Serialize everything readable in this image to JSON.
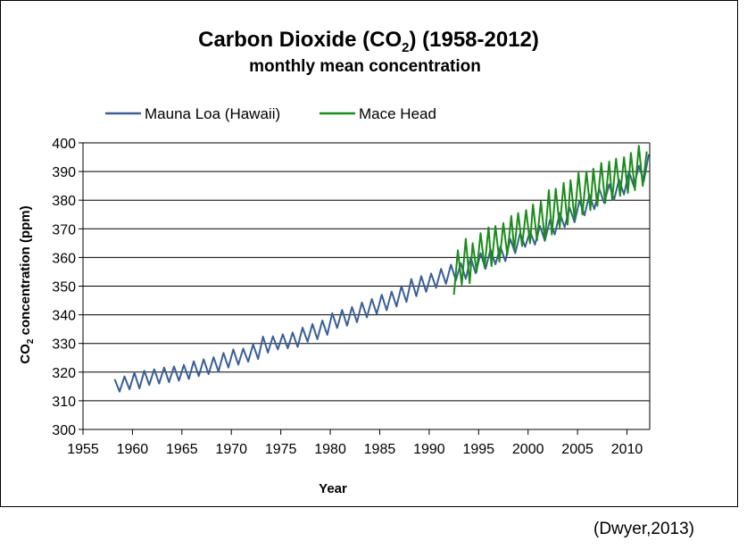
{
  "chart_data": {
    "type": "line",
    "title": {
      "prefix": "Carbon Dioxide (CO",
      "subscript": "2",
      "suffix": ") (1958-2012)"
    },
    "subtitle": "monthly mean concentration",
    "xlabel": "Year",
    "ylabel": {
      "prefix": "CO",
      "subscript": "2",
      "suffix": " concentration (ppm)"
    },
    "xlim": [
      1955,
      2012.3
    ],
    "ylim": [
      300,
      400
    ],
    "x_ticks": [
      1955,
      1960,
      1965,
      1970,
      1975,
      1980,
      1985,
      1990,
      1995,
      2000,
      2005,
      2010
    ],
    "y_ticks": [
      300,
      310,
      320,
      330,
      340,
      350,
      360,
      370,
      380,
      390,
      400
    ],
    "grid": "horizontal",
    "legend_position": "top",
    "series": [
      {
        "name": "Mauna Loa (Hawaii)",
        "color": "#3a5f96",
        "x": [
          1958.2,
          1958.7,
          1959.2,
          1959.7,
          1960.2,
          1960.7,
          1961.2,
          1961.7,
          1962.2,
          1962.7,
          1963.2,
          1963.7,
          1964.2,
          1964.7,
          1965.2,
          1965.7,
          1966.2,
          1966.7,
          1967.2,
          1967.7,
          1968.2,
          1968.7,
          1969.2,
          1969.7,
          1970.2,
          1970.7,
          1971.2,
          1971.7,
          1972.2,
          1972.7,
          1973.2,
          1973.7,
          1974.2,
          1974.7,
          1975.2,
          1975.7,
          1976.2,
          1976.7,
          1977.2,
          1977.7,
          1978.2,
          1978.7,
          1979.2,
          1979.7,
          1980.2,
          1980.7,
          1981.2,
          1981.7,
          1982.2,
          1982.7,
          1983.2,
          1983.7,
          1984.2,
          1984.7,
          1985.2,
          1985.7,
          1986.2,
          1986.7,
          1987.2,
          1987.7,
          1988.2,
          1988.7,
          1989.2,
          1989.7,
          1990.2,
          1990.7,
          1991.2,
          1991.7,
          1992.2,
          1992.7,
          1993.2,
          1993.7,
          1994.2,
          1994.7,
          1995.2,
          1995.7,
          1996.2,
          1996.7,
          1997.2,
          1997.7,
          1998.2,
          1998.7,
          1999.2,
          1999.7,
          2000.2,
          2000.7,
          2001.2,
          2001.7,
          2002.2,
          2002.7,
          2003.2,
          2003.7,
          2004.2,
          2004.7,
          2005.2,
          2005.7,
          2006.2,
          2006.7,
          2007.2,
          2007.7,
          2008.2,
          2008.7,
          2009.2,
          2009.7,
          2010.2,
          2010.7,
          2011.2,
          2011.7,
          2012.2
        ],
        "values": [
          317.5,
          313.2,
          318.5,
          314.0,
          319.8,
          314.3,
          320.5,
          315.5,
          321.0,
          316.0,
          321.6,
          316.5,
          322.0,
          317.0,
          322.5,
          317.6,
          323.8,
          318.6,
          324.5,
          319.3,
          325.2,
          320.2,
          326.7,
          321.6,
          327.9,
          322.6,
          328.2,
          323.6,
          329.7,
          324.6,
          332.4,
          326.8,
          332.5,
          327.9,
          333.2,
          328.3,
          333.8,
          328.8,
          335.5,
          330.6,
          336.8,
          331.5,
          338.0,
          333.0,
          340.6,
          335.4,
          341.7,
          336.2,
          342.7,
          337.4,
          344.3,
          339.1,
          345.5,
          340.3,
          347.0,
          341.6,
          348.1,
          342.9,
          350.0,
          344.5,
          352.5,
          346.5,
          353.5,
          348.0,
          354.4,
          349.4,
          356.0,
          350.8,
          357.5,
          352.0,
          358.0,
          352.6,
          360.0,
          354.5,
          361.5,
          356.0,
          362.8,
          357.6,
          363.8,
          358.7,
          366.5,
          361.5,
          368.5,
          363.7,
          369.2,
          364.5,
          371.0,
          365.8,
          373.0,
          368.0,
          375.5,
          370.6,
          377.4,
          372.3,
          379.8,
          374.7,
          381.9,
          376.9,
          384.0,
          379.0,
          385.5,
          380.2,
          387.2,
          382.0,
          390.0,
          384.7,
          392.0,
          386.6,
          396.0
        ]
      },
      {
        "name": "Mace Head",
        "color": "#1a8c1a",
        "x": [
          1992.5,
          1992.9,
          1993.3,
          1993.7,
          1994.1,
          1994.4,
          1994.8,
          1995.2,
          1995.6,
          1996.0,
          1996.3,
          1996.7,
          1997.1,
          1997.5,
          1997.9,
          1998.3,
          1998.6,
          1999.0,
          1999.4,
          1999.8,
          2000.2,
          2000.5,
          2000.9,
          2001.3,
          2001.7,
          2002.1,
          2002.4,
          2002.8,
          2003.2,
          2003.6,
          2004.0,
          2004.3,
          2004.7,
          2005.1,
          2005.5,
          2005.9,
          2006.3,
          2006.6,
          2007.0,
          2007.4,
          2007.8,
          2008.2,
          2008.5,
          2008.9,
          2009.3,
          2009.7,
          2010.1,
          2010.4,
          2010.8,
          2011.2,
          2011.6,
          2012.0
        ],
        "values": [
          347.0,
          362.5,
          350.5,
          366.5,
          351.0,
          365.0,
          355.0,
          368.5,
          356.5,
          370.5,
          357.0,
          371.0,
          358.5,
          372.0,
          361.0,
          374.5,
          362.5,
          375.5,
          364.0,
          376.5,
          365.0,
          378.5,
          366.0,
          379.5,
          366.0,
          383.5,
          368.0,
          384.0,
          370.5,
          386.0,
          371.5,
          387.0,
          373.5,
          389.5,
          375.0,
          390.0,
          376.5,
          391.0,
          378.0,
          393.0,
          379.0,
          393.5,
          380.0,
          394.5,
          381.5,
          395.0,
          382.5,
          396.5,
          383.5,
          399.0,
          385.0,
          397.0
        ]
      }
    ]
  },
  "citation": "(Dwyer,2013)"
}
